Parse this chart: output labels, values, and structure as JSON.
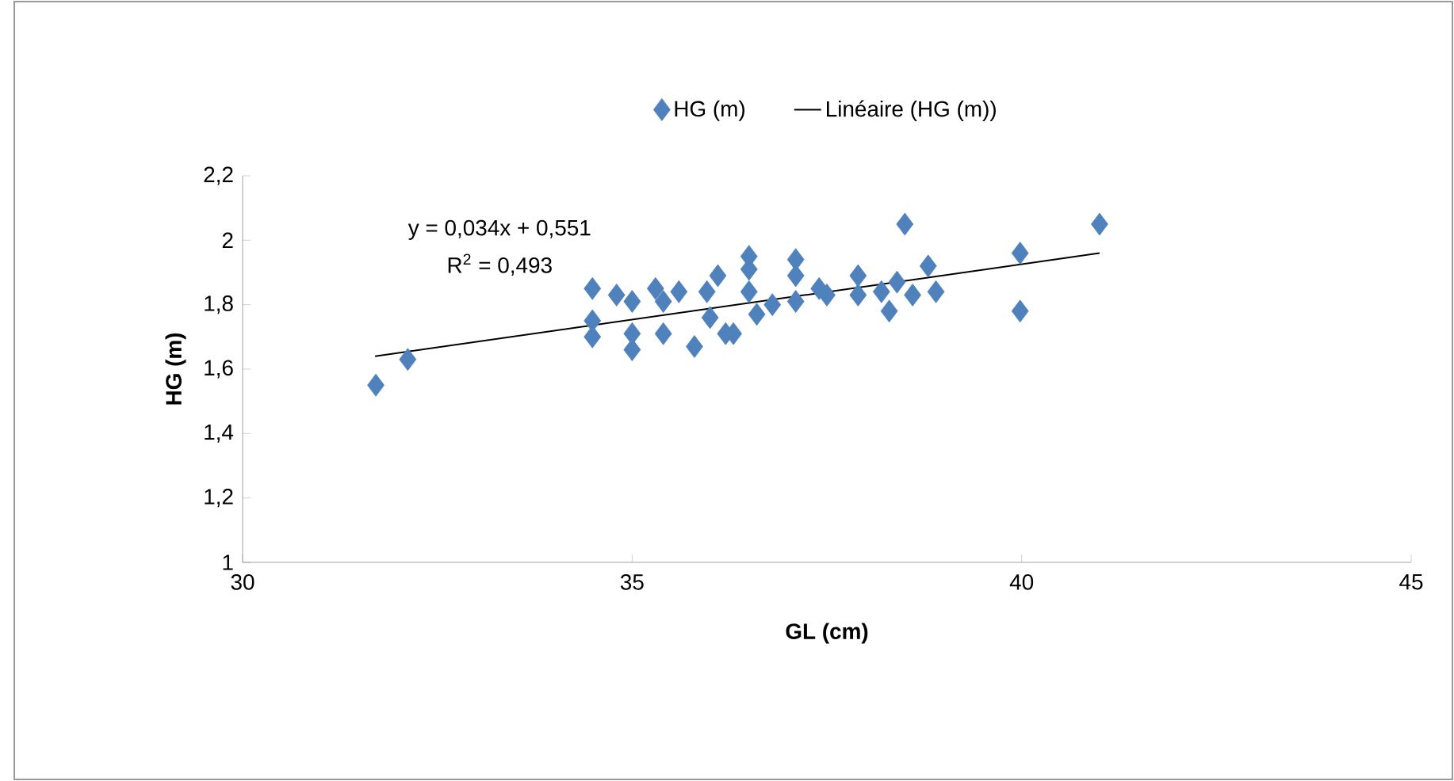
{
  "chart_data": {
    "type": "scatter",
    "xlabel": "GL (cm)",
    "ylabel": "HG (m)",
    "xlim": [
      30,
      45
    ],
    "xticks": [
      30,
      35,
      40,
      45
    ],
    "ylim": [
      1,
      2.2
    ],
    "yticks": [
      1,
      {
        "value": 1.2,
        "label": "1,2"
      },
      {
        "value": 1.4,
        "label": "1,4"
      },
      {
        "value": 1.6,
        "label": "1,6"
      },
      {
        "value": 1.8,
        "label": "1,8"
      },
      2,
      {
        "value": 2.2,
        "label": "2,2"
      }
    ],
    "series": [
      {
        "name": "HG (m)",
        "color": "#4f81bd",
        "marker": "diamond",
        "x": [
          31.71,
          32.12,
          34.49,
          34.49,
          34.49,
          34.8,
          35.0,
          35.0,
          35.0,
          35.3,
          35.4,
          35.4,
          35.6,
          35.8,
          36.0,
          36.1,
          35.96,
          36.2,
          36.3,
          36.5,
          36.5,
          36.5,
          36.6,
          36.8,
          37.1,
          37.1,
          37.1,
          37.4,
          37.5,
          37.9,
          37.9,
          38.2,
          38.3,
          38.4,
          38.5,
          38.6,
          38.8,
          38.9,
          39.98,
          39.98,
          41.0
        ],
        "values": [
          1.55,
          1.63,
          1.85,
          1.75,
          1.7,
          1.83,
          1.81,
          1.71,
          1.66,
          1.85,
          1.81,
          1.71,
          1.84,
          1.67,
          1.76,
          1.89,
          1.84,
          1.71,
          1.71,
          1.95,
          1.91,
          1.84,
          1.77,
          1.8,
          1.94,
          1.89,
          1.81,
          1.85,
          1.83,
          1.89,
          1.83,
          1.84,
          1.78,
          1.87,
          2.05,
          1.83,
          1.92,
          1.84,
          1.96,
          1.78,
          2.05
        ]
      },
      {
        "name": "Linéaire (HG (m))",
        "type": "line",
        "marker": "none",
        "color": "#000000",
        "x": [
          31.7,
          41.0
        ],
        "values": [
          1.64,
          1.96
        ]
      }
    ],
    "legend": "top",
    "annotations": [
      "y = 0,034x + 0,551",
      "R$^{2}$ = 0,493"
    ]
  }
}
